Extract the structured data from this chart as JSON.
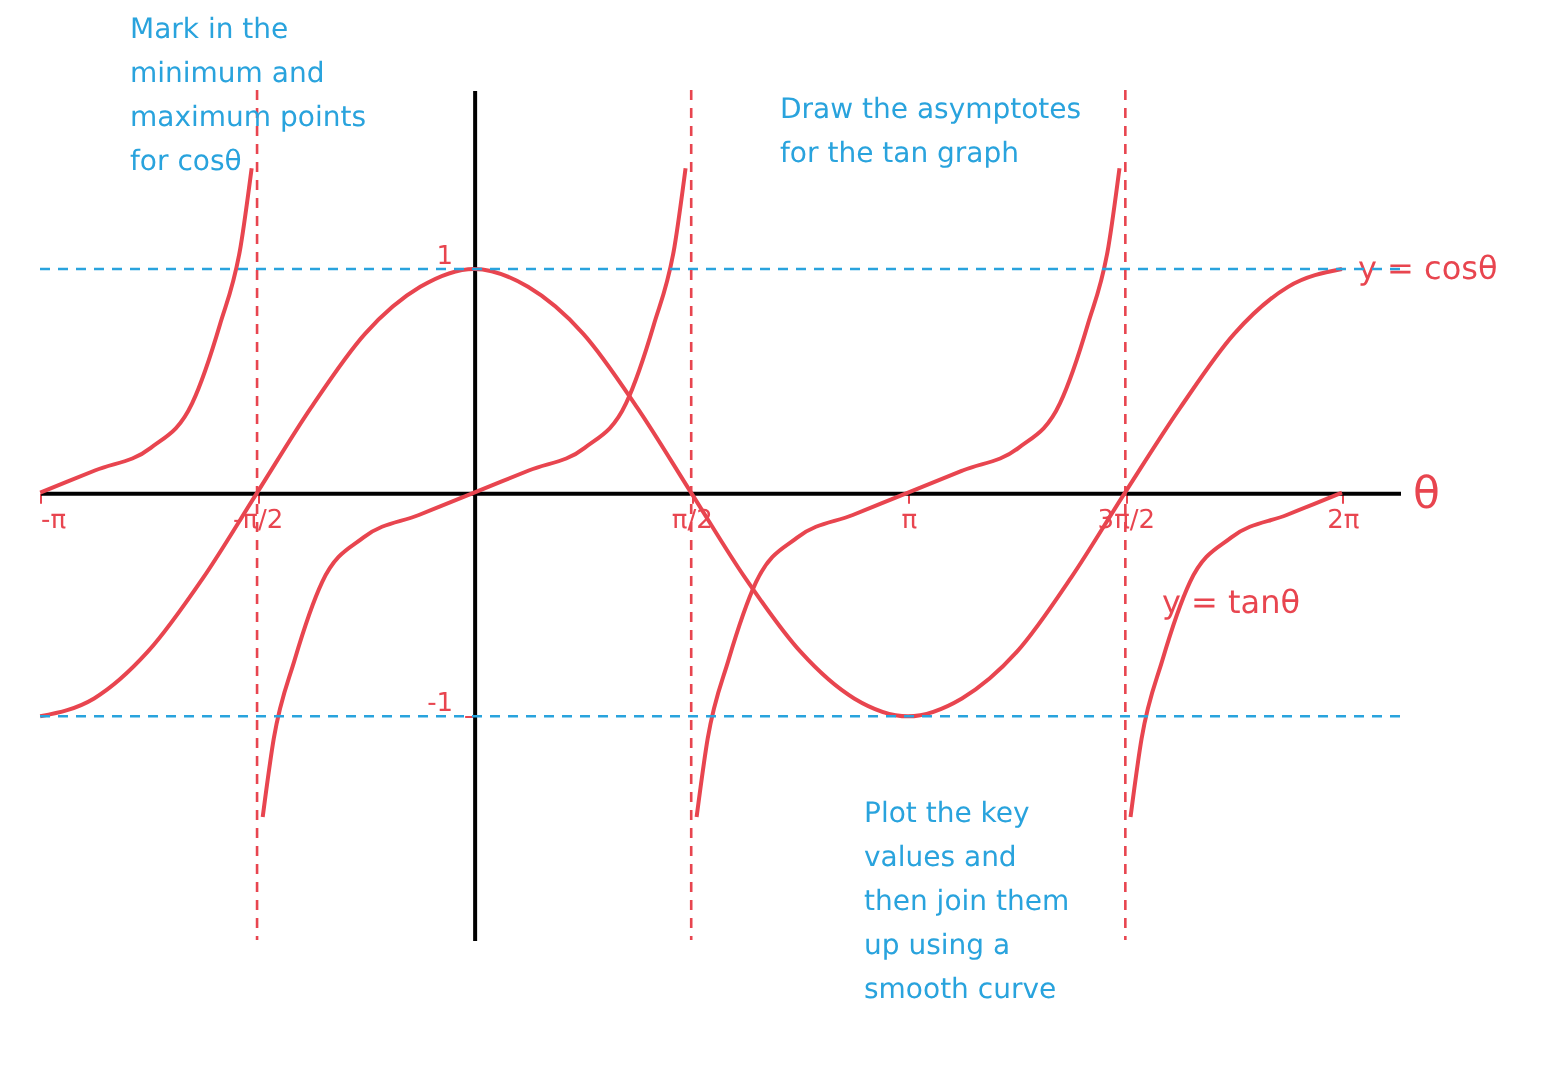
{
  "chart_data": {
    "type": "line",
    "xlabel": "θ",
    "xlim": [
      -3.1416,
      6.7
    ],
    "ylim": [
      -2.0,
      1.8
    ],
    "xticks": [
      {
        "value": -3.1416,
        "label": "-π"
      },
      {
        "value": -1.5708,
        "label": "-π/2"
      },
      {
        "value": 1.5708,
        "label": "π/2"
      },
      {
        "value": 3.1416,
        "label": "π"
      },
      {
        "value": 4.7124,
        "label": "3π/2"
      },
      {
        "value": 6.2832,
        "label": "2π"
      }
    ],
    "yticks": [
      1,
      -1
    ],
    "grid": false,
    "marker": "none",
    "line_style": "solid",
    "series": [
      {
        "name": "y = cosθ",
        "color": "#e8454f",
        "x": [
          -3.14,
          -2.75,
          -2.36,
          -1.96,
          -1.57,
          -1.18,
          -0.79,
          -0.39,
          0,
          0.39,
          0.79,
          1.18,
          1.57,
          1.96,
          2.36,
          2.75,
          3.14,
          3.53,
          3.93,
          4.32,
          4.71,
          5.11,
          5.5,
          5.89,
          6.28
        ],
        "values": [
          -1,
          -0.92,
          -0.71,
          -0.38,
          0,
          0.38,
          0.71,
          0.92,
          1,
          0.92,
          0.71,
          0.38,
          0,
          -0.38,
          -0.71,
          -0.92,
          -1,
          -0.92,
          -0.71,
          -0.38,
          0,
          0.38,
          0.71,
          0.92,
          1
        ]
      },
      {
        "name": "y = tanθ",
        "color": "#e8454f",
        "x": [
          -3.14,
          -2.74,
          -2.34,
          -2.04,
          -1.84,
          -1.69,
          -1.61,
          -1.5708,
          -1.53,
          -1.45,
          -1.3,
          -1.1,
          -0.8,
          -0.4,
          0,
          0.4,
          0.8,
          1.1,
          1.3,
          1.45,
          1.53,
          1.5708,
          1.61,
          1.69,
          1.84,
          2.04,
          2.34,
          2.74,
          3.14,
          3.54,
          3.94,
          4.24,
          4.44,
          4.59,
          4.67,
          4.7124,
          4.75,
          4.83,
          4.98,
          5.18,
          5.48,
          5.88,
          6.28
        ],
        "values": [
          0,
          0.1,
          0.2,
          0.4,
          0.75,
          1.1,
          1.45,
          null,
          -1.45,
          -1.1,
          -0.75,
          -0.4,
          -0.2,
          -0.1,
          0,
          0.1,
          0.2,
          0.4,
          0.75,
          1.1,
          1.45,
          null,
          -1.45,
          -1.1,
          -0.75,
          -0.4,
          -0.2,
          -0.1,
          0,
          0.1,
          0.2,
          0.4,
          0.75,
          1.1,
          1.45,
          null,
          -1.45,
          -1.1,
          -0.75,
          -0.4,
          -0.2,
          -0.1,
          0
        ]
      }
    ],
    "ref_lines": [
      {
        "axis": "y",
        "value": 1,
        "color": "#29a3dd",
        "line_style": "dashed"
      },
      {
        "axis": "y",
        "value": -1,
        "color": "#29a3dd",
        "line_style": "dashed"
      },
      {
        "axis": "x",
        "value": -1.5708,
        "color": "#e8454f",
        "line_style": "dashed"
      },
      {
        "axis": "x",
        "value": 1.5708,
        "color": "#e8454f",
        "line_style": "dashed"
      },
      {
        "axis": "x",
        "value": 4.7124,
        "color": "#e8454f",
        "line_style": "dashed"
      }
    ],
    "annotations": [
      "Mark in the\nminimum and\nmaximum points\nfor cosθ",
      "Draw the asymptotes\nfor the tan graph",
      "Plot the key\nvalues and\nthen join them\nup using a\nsmooth curve"
    ]
  }
}
